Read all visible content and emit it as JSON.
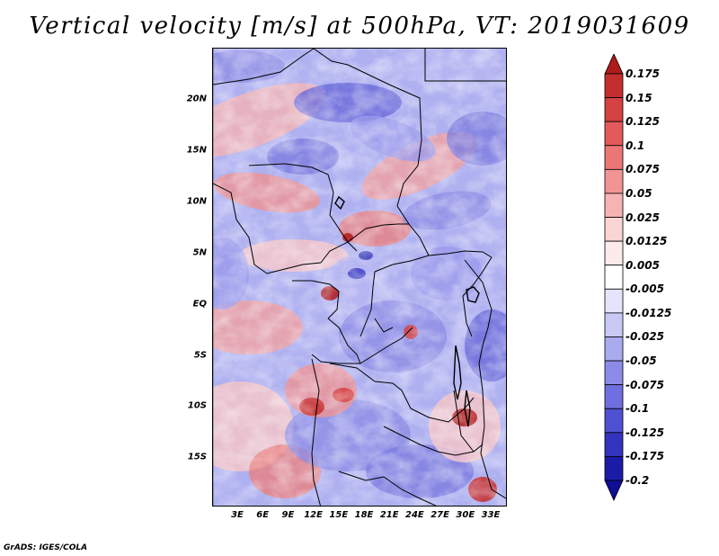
{
  "title": "Vertical velocity [m/s] at 500hPa, VT: 2019031609",
  "footer": "GrADS: IGES/COLA",
  "lat_labels": [
    "20N",
    "15N",
    "10N",
    "5N",
    "EQ",
    "5S",
    "10S",
    "15S"
  ],
  "lon_labels": [
    "3E",
    "6E",
    "9E",
    "12E",
    "15E",
    "18E",
    "21E",
    "24E",
    "27E",
    "30E",
    "33E"
  ],
  "colorbar": {
    "labels": [
      "0.175",
      "0.15",
      "0.125",
      "0.1",
      "0.075",
      "0.05",
      "0.025",
      "0.0125",
      "0.005",
      "-0.005",
      "-0.0125",
      "-0.025",
      "-0.05",
      "-0.075",
      "-0.1",
      "-0.125",
      "-0.175",
      "-0.2"
    ],
    "colors": [
      "#b01b1b",
      "#c52e2e",
      "#d54242",
      "#e35a5a",
      "#ec7676",
      "#f29494",
      "#f7b3b3",
      "#fbd4d4",
      "#fdeaea",
      "#ffffff",
      "#e4e4fb",
      "#c9c9f6",
      "#aaaaef",
      "#8c8ce8",
      "#6f6fdf",
      "#5050d2",
      "#3333bf",
      "#1b1ba8",
      "#0e0e96"
    ]
  },
  "map": {
    "region": "Central Africa",
    "field": "vertical velocity",
    "level": "500hPa",
    "units": "m/s",
    "valid_time": "2019031609"
  }
}
